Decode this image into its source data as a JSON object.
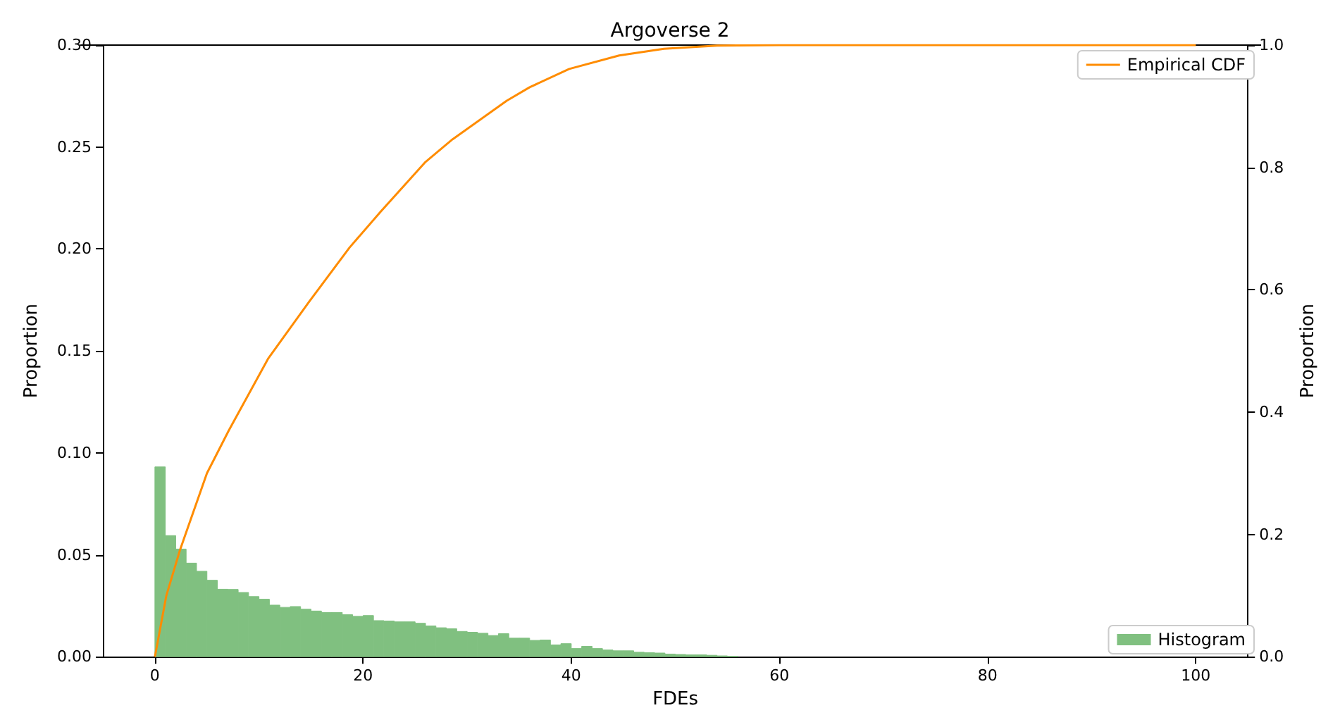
{
  "chart_data": {
    "type": "histogram",
    "title": "Argoverse 2",
    "xlabel": "FDEs",
    "ylabel": "Proportion",
    "y2label": "Proportion",
    "bins": [
      0,
      1,
      2,
      3,
      4,
      5,
      6,
      7,
      8,
      9,
      10,
      11,
      12,
      13,
      14,
      15,
      16,
      17,
      18,
      19,
      20,
      21,
      22,
      23,
      24,
      25,
      26,
      27,
      28,
      29,
      30,
      31,
      32,
      33,
      34,
      35,
      36,
      37,
      38,
      39,
      40,
      41,
      42,
      43,
      44,
      45,
      46,
      47,
      48,
      49,
      50,
      51,
      52,
      53,
      54,
      55,
      56
    ],
    "series": [
      {
        "name": "Histogram",
        "color": "#80c080",
        "values": [
          0.0931,
          0.0594,
          0.0528,
          0.0459,
          0.0419,
          0.0375,
          0.0331,
          0.033,
          0.0315,
          0.0295,
          0.0282,
          0.0253,
          0.0242,
          0.0246,
          0.0233,
          0.0224,
          0.0217,
          0.0217,
          0.0206,
          0.0198,
          0.0202,
          0.0177,
          0.0175,
          0.0171,
          0.0171,
          0.0164,
          0.0151,
          0.0142,
          0.0137,
          0.0124,
          0.012,
          0.0115,
          0.0104,
          0.0113,
          0.0091,
          0.0091,
          0.008,
          0.0082,
          0.0058,
          0.0064,
          0.004,
          0.0051,
          0.004,
          0.0033,
          0.0029,
          0.0029,
          0.0022,
          0.002,
          0.0018,
          0.0013,
          0.0011,
          0.0009,
          0.0009,
          0.0007,
          0.0004,
          0.0002
        ]
      },
      {
        "name": "Empirical CDF",
        "type": "line",
        "axis": "y2",
        "color": "#ff8c00",
        "x": [
          0,
          1.1,
          2.4,
          5,
          7.1,
          10.9,
          14.8,
          18.7,
          21.7,
          26,
          28.6,
          33.8,
          36,
          39.8,
          44.6,
          48.9,
          54,
          60,
          80,
          100
        ],
        "values": [
          0,
          0.1,
          0.174,
          0.3,
          0.37,
          0.488,
          0.58,
          0.669,
          0.728,
          0.809,
          0.846,
          0.909,
          0.931,
          0.961,
          0.983,
          0.994,
          0.999,
          1,
          1,
          1
        ]
      }
    ],
    "xlim": [
      -5,
      105
    ],
    "xticks": [
      0,
      20,
      40,
      60,
      80,
      100
    ],
    "ylim": [
      0,
      0.3
    ],
    "yticks": [
      {
        "value": 0,
        "label": "0.00"
      },
      0.05,
      {
        "value": 0.1,
        "label": "0.10"
      },
      0.15,
      {
        "value": 0.2,
        "label": "0.20"
      },
      0.25,
      {
        "value": 0.3,
        "label": "0.30"
      }
    ],
    "y2lim": [
      0,
      1
    ],
    "y2ticks": [
      {
        "value": 0,
        "label": "0.0"
      },
      0.2,
      0.4,
      0.6,
      0.8,
      {
        "value": 1,
        "label": "1.0"
      }
    ],
    "legend": "right",
    "grid": false
  }
}
